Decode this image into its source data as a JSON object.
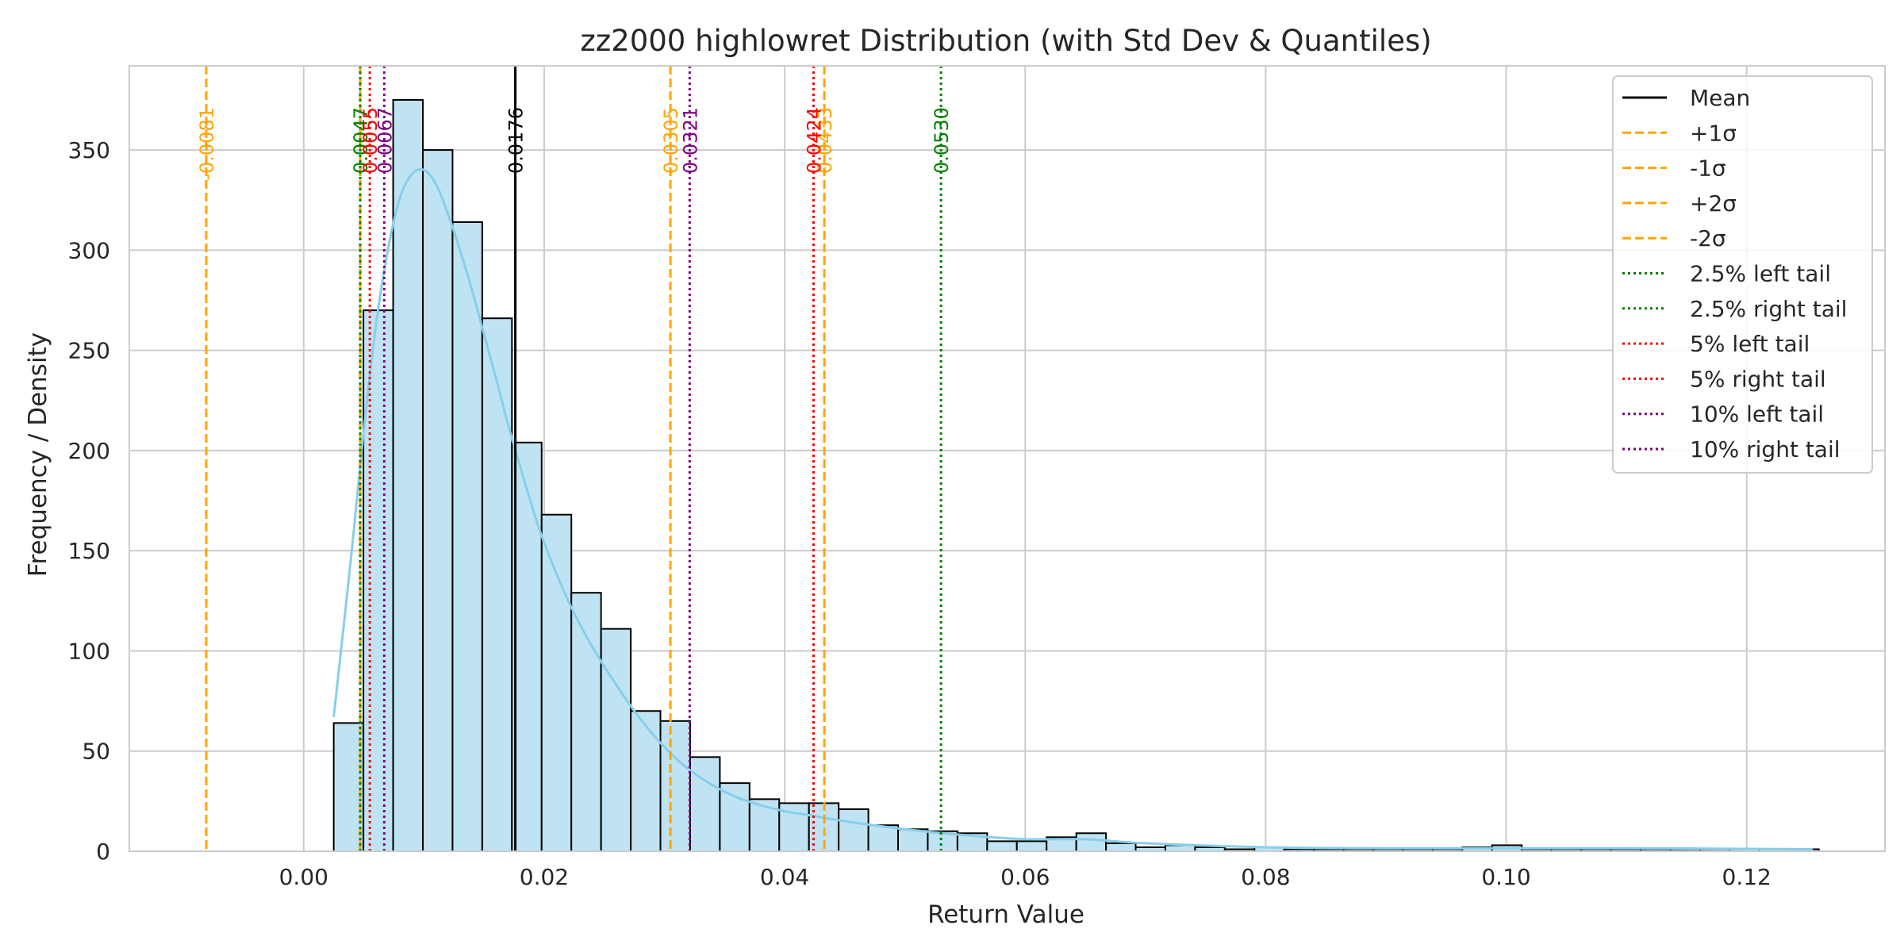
{
  "chart_data": {
    "type": "bar",
    "title": "zz2000 highlowret Distribution (with Std Dev & Quantiles)",
    "xlabel": "Return Value",
    "ylabel": "Frequency / Density",
    "xlim": [
      -0.0145,
      0.1315
    ],
    "ylim": [
      0,
      392
    ],
    "x_ticks": [
      0.0,
      0.02,
      0.04,
      0.06,
      0.08,
      0.1,
      0.12
    ],
    "x_tick_labels": [
      "0.00",
      "0.02",
      "0.04",
      "0.06",
      "0.08",
      "0.10",
      "0.12"
    ],
    "y_ticks": [
      0,
      50,
      100,
      150,
      200,
      250,
      300,
      350
    ],
    "y_tick_labels": [
      "0",
      "50",
      "100",
      "150",
      "200",
      "250",
      "300",
      "350"
    ],
    "grid": true,
    "legend_position": "top-right",
    "histogram": {
      "bin_start": 0.0025,
      "bin_width": 0.00247,
      "counts": [
        64,
        270,
        375,
        350,
        314,
        266,
        204,
        168,
        129,
        111,
        70,
        65,
        47,
        34,
        26,
        24,
        24,
        21,
        13,
        11,
        10,
        9,
        5,
        5,
        7,
        9,
        4,
        2,
        3,
        2,
        1,
        2,
        1,
        1,
        1,
        1,
        1,
        1,
        2,
        3,
        1,
        1,
        1,
        1,
        1,
        1,
        1,
        1,
        1,
        1
      ],
      "fill_color": "#bfe3f2",
      "edge_color": "#000000"
    },
    "kde": {
      "color": "#87ceeb",
      "x": [
        0.0025,
        0.004,
        0.005,
        0.006,
        0.007,
        0.008,
        0.009,
        0.01,
        0.011,
        0.012,
        0.013,
        0.014,
        0.015,
        0.016,
        0.017,
        0.018,
        0.019,
        0.02,
        0.022,
        0.024,
        0.026,
        0.028,
        0.03,
        0.032,
        0.034,
        0.036,
        0.038,
        0.04,
        0.042,
        0.045,
        0.05,
        0.055,
        0.06,
        0.065,
        0.07,
        0.08,
        0.09,
        0.1,
        0.11,
        0.12,
        0.1255
      ],
      "y": [
        67,
        150,
        210,
        262,
        300,
        326,
        338,
        340,
        333,
        318,
        300,
        280,
        258,
        236,
        213,
        192,
        172,
        154,
        125,
        102,
        83,
        66,
        52,
        41,
        33,
        27,
        23,
        20,
        18,
        15,
        11,
        8,
        6,
        6,
        4,
        2,
        1.5,
        1.5,
        1.5,
        1.2,
        1
      ]
    },
    "vlines": [
      {
        "name": "Mean",
        "x": 0.0176,
        "label": "0.0176",
        "color": "#000000",
        "style": "solid"
      },
      {
        "name": "+1σ",
        "x": 0.0305,
        "label": "0.0305",
        "color": "#ffa500",
        "style": "dashed"
      },
      {
        "name": "-1σ",
        "x": 0.0047,
        "label": "0.0047",
        "color": "#ffa500",
        "style": "dashed"
      },
      {
        "name": "+2σ",
        "x": 0.0433,
        "label": "0.0433",
        "color": "#ffa500",
        "style": "dashed"
      },
      {
        "name": "-2σ",
        "x": -0.0081,
        "label": "-0.0081",
        "color": "#ffa500",
        "style": "dashed"
      },
      {
        "name": "2.5% left tail",
        "x": 0.0047,
        "label": "0.0047",
        "color": "#008000",
        "style": "dotted"
      },
      {
        "name": "2.5% right tail",
        "x": 0.053,
        "label": "0.0530",
        "color": "#008000",
        "style": "dotted"
      },
      {
        "name": "5% left tail",
        "x": 0.0055,
        "label": "0.0055",
        "color": "#ff0000",
        "style": "dotted"
      },
      {
        "name": "5% right tail",
        "x": 0.0424,
        "label": "0.0424",
        "color": "#ff0000",
        "style": "dotted"
      },
      {
        "name": "10% left tail",
        "x": 0.0067,
        "label": "0.0067",
        "color": "#800080",
        "style": "dotted"
      },
      {
        "name": "10% right tail",
        "x": 0.0321,
        "label": "0.0321",
        "color": "#800080",
        "style": "dotted"
      }
    ],
    "legend": [
      {
        "label": "Mean",
        "color": "#000000",
        "style": "solid"
      },
      {
        "label": "+1σ",
        "color": "#ffa500",
        "style": "dashed"
      },
      {
        "label": "-1σ",
        "color": "#ffa500",
        "style": "dashed"
      },
      {
        "label": "+2σ",
        "color": "#ffa500",
        "style": "dashed"
      },
      {
        "label": "-2σ",
        "color": "#ffa500",
        "style": "dashed"
      },
      {
        "label": "2.5% left tail",
        "color": "#008000",
        "style": "dotted"
      },
      {
        "label": "2.5% right tail",
        "color": "#008000",
        "style": "dotted"
      },
      {
        "label": "5% left tail",
        "color": "#ff0000",
        "style": "dotted"
      },
      {
        "label": "5% right tail",
        "color": "#ff0000",
        "style": "dotted"
      },
      {
        "label": "10% left tail",
        "color": "#800080",
        "style": "dotted"
      },
      {
        "label": "10% right tail",
        "color": "#800080",
        "style": "dotted"
      }
    ]
  }
}
